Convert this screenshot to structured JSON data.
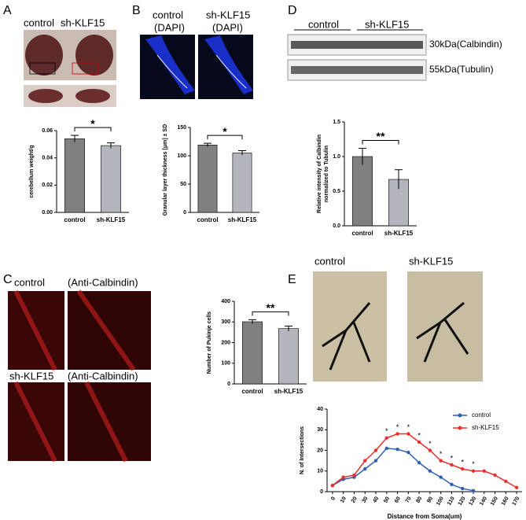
{
  "figure": {
    "panel_labels": [
      "A",
      "B",
      "C",
      "D",
      "E"
    ],
    "panel_a": {
      "left": "control",
      "right": "sh-KLF15"
    },
    "panel_b": {
      "left": "control",
      "right": "sh-KLF15",
      "stain_left": "(DAPI)",
      "stain_right": "(DAPI)"
    },
    "panel_c": {
      "top": "control",
      "bottom": "sh-KLF15",
      "stain_top": "(Anti-Calbindin)",
      "stain_bottom": "(Anti-Calbindin)"
    },
    "panel_d": {
      "left": "control",
      "right": "sh-KLF15",
      "band_1": "30kDa(Calbindin)",
      "band_2": "55kDa(Tubulin)"
    },
    "panel_e": {
      "left": "control",
      "right": "sh-KLF15"
    }
  },
  "chart_data": [
    {
      "type": "bar",
      "ylabel": "cerebellum weight/g",
      "categories": [
        "control",
        "sh-KLF15"
      ],
      "values": [
        0.054,
        0.049
      ],
      "errors": [
        0.0025,
        0.002
      ],
      "colors": [
        "#808080",
        "#b4b4bc"
      ],
      "ylim": [
        0,
        0.06
      ],
      "yticks": [
        {
          "value": 0,
          "label": "0.00"
        },
        {
          "value": 0.02,
          "label": "0.02"
        },
        {
          "value": 0.04,
          "label": "0.04"
        },
        {
          "value": 0.06,
          "label": "0.06"
        }
      ],
      "significance": "*"
    },
    {
      "type": "bar",
      "ylabel": "Granular layer thickness [μm] ± SD",
      "categories": [
        "control",
        "sh-KLF15"
      ],
      "values": [
        119,
        105
      ],
      "errors": [
        3,
        4
      ],
      "colors": [
        "#808080",
        "#b4b4bc"
      ],
      "ylim": [
        0,
        150
      ],
      "yticks": [
        0,
        50,
        100,
        150
      ],
      "significance": "*"
    },
    {
      "type": "bar",
      "ylabel": "Number of Pukinje cells",
      "categories": [
        "control",
        "sh-KLF15"
      ],
      "values": [
        301,
        268
      ],
      "errors": [
        10,
        12
      ],
      "colors": [
        "#808080",
        "#b4b4bc"
      ],
      "ylim": [
        0,
        400
      ],
      "yticks": [
        0,
        100,
        200,
        300,
        400
      ],
      "significance": "**"
    },
    {
      "type": "bar",
      "ylabel": [
        "Relative intensity of Calbindin",
        "normalized to Tubulin"
      ],
      "categories": [
        "control",
        "sh-KLF15"
      ],
      "values": [
        1.0,
        0.67
      ],
      "errors": [
        0.12,
        0.14
      ],
      "colors": [
        "#808080",
        "#b4b4bc"
      ],
      "ylim": [
        0,
        1.5
      ],
      "yticks": [
        {
          "value": 0,
          "label": "0.0"
        },
        {
          "value": 0.5,
          "label": "0.5"
        },
        {
          "value": 1,
          "label": "1.0"
        },
        {
          "value": 1.5,
          "label": "1.5"
        }
      ],
      "significance": "**"
    },
    {
      "type": "line",
      "xlabel": "Distance from Soma(um)",
      "ylabel": "N. of Intersections",
      "x": [
        0,
        10,
        20,
        30,
        40,
        50,
        60,
        70,
        80,
        90,
        100,
        110,
        120,
        130,
        140,
        150,
        160,
        170
      ],
      "series": [
        {
          "name": "control",
          "color": "#2e5fb0",
          "values": [
            3,
            6,
            7,
            11,
            15,
            21,
            20.5,
            19,
            14,
            10,
            7,
            3.5,
            1.5,
            0.5,
            null,
            null,
            null,
            null
          ]
        },
        {
          "name": "sh-KLF15",
          "color": "#e8302a",
          "values": [
            3,
            7,
            8,
            15,
            20,
            26,
            28,
            28,
            24,
            20,
            15,
            13,
            11,
            10,
            10,
            8,
            5,
            2
          ]
        }
      ],
      "xlim": [
        -5,
        175
      ],
      "xticks": [
        0,
        10,
        20,
        30,
        40,
        50,
        60,
        70,
        80,
        90,
        100,
        110,
        120,
        130,
        140,
        150,
        160,
        170
      ],
      "ylim": [
        0,
        40
      ],
      "yticks": [
        0,
        10,
        20,
        30,
        40
      ],
      "legend": "upper right",
      "annotations": [
        {
          "x": 50,
          "label": "*"
        },
        {
          "x": 60,
          "label": "*"
        },
        {
          "x": 70,
          "label": "*"
        },
        {
          "x": 80,
          "label": "*"
        },
        {
          "x": 90,
          "label": "*"
        },
        {
          "x": 100,
          "label": "*"
        },
        {
          "x": 110,
          "label": "*"
        },
        {
          "x": 120,
          "label": "*"
        },
        {
          "x": 130,
          "label": "*"
        }
      ]
    }
  ]
}
